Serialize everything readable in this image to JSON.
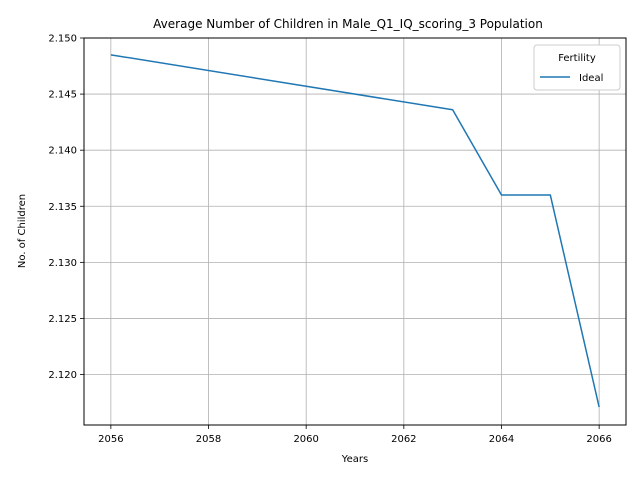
{
  "chart_data": {
    "type": "line",
    "title": "Average Number of Children in Male_Q1_IQ_scoring_3 Population",
    "xlabel": "Years",
    "ylabel": "No. of Children",
    "xlim": [
      2055.45,
      2066.55
    ],
    "ylim": [
      2.1155,
      2.15
    ],
    "x_ticks": [
      2056,
      2058,
      2060,
      2062,
      2064,
      2066
    ],
    "y_ticks": [
      2.12,
      2.125,
      2.13,
      2.135,
      2.14,
      2.145,
      2.15
    ],
    "x_tick_labels": [
      "2056",
      "2058",
      "2060",
      "2062",
      "2064",
      "2066"
    ],
    "y_tick_labels": [
      "2.120",
      "2.125",
      "2.130",
      "2.135",
      "2.140",
      "2.145",
      "2.150"
    ],
    "grid": true,
    "legend": {
      "title": "Fertility",
      "placement": "top-right"
    },
    "series": [
      {
        "name": "Ideal",
        "color": "#1f77b4",
        "x": [
          2056,
          2063,
          2064,
          2065,
          2066
        ],
        "y": [
          2.1485,
          2.1436,
          2.136,
          2.136,
          2.1171
        ]
      }
    ]
  }
}
